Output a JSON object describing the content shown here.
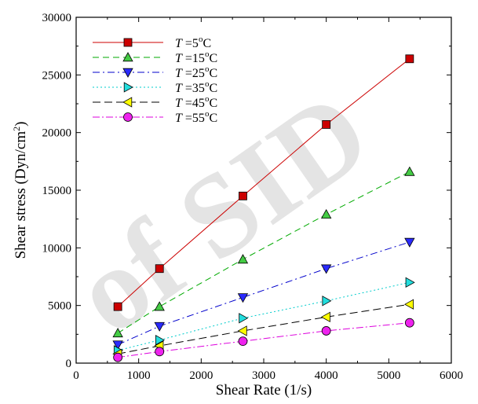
{
  "chart_data": {
    "type": "line",
    "xlabel": "Shear Rate (1/s)",
    "ylabel_main": "Shear stress (Dyn/cm",
    "ylabel_sup": "2",
    "ylabel_end": ")",
    "xlim": [
      0,
      6000
    ],
    "ylim": [
      0,
      30000
    ],
    "xticks": [
      0,
      1000,
      2000,
      3000,
      4000,
      5000,
      6000
    ],
    "yticks": [
      0,
      5000,
      10000,
      15000,
      20000,
      25000,
      30000
    ],
    "x": [
      667,
      1333,
      2667,
      4000,
      5333
    ],
    "legend_position": "top-left",
    "grid": false,
    "series": [
      {
        "name": "T =5°C",
        "temp": "5",
        "values": [
          4900,
          8200,
          14500,
          20700,
          26400
        ],
        "color": "#cc0000",
        "marker": "square",
        "fill": "#cc0000",
        "dash": ""
      },
      {
        "name": "T =15°C",
        "temp": "15",
        "values": [
          2600,
          4900,
          9000,
          12900,
          16600
        ],
        "color": "#00aa00",
        "marker": "triangle-up",
        "fill": "#44cc44",
        "dash": "8,5"
      },
      {
        "name": "T =25°C",
        "temp": "25",
        "values": [
          1600,
          3200,
          5700,
          8200,
          10500
        ],
        "color": "#0000cc",
        "marker": "triangle-down",
        "fill": "#2a2aff",
        "dash": "9,4,2,4"
      },
      {
        "name": "T =35°C",
        "temp": "35",
        "values": [
          1100,
          2000,
          3900,
          5400,
          7000
        ],
        "color": "#00cccc",
        "marker": "triangle-right",
        "fill": "#22dddd",
        "dash": "2,3"
      },
      {
        "name": "T =45°C",
        "temp": "45",
        "values": [
          800,
          1500,
          2800,
          4000,
          5100
        ],
        "color": "#000000",
        "marker": "triangle-left",
        "fill": "#ffff00",
        "dash": "10,5"
      },
      {
        "name": "T =55°C",
        "temp": "55",
        "values": [
          500,
          1000,
          1900,
          2800,
          3500
        ],
        "color": "#dd00dd",
        "marker": "circle",
        "fill": "#ee22ee",
        "dash": "9,3,2,3"
      }
    ]
  },
  "watermark": {
    "text": "of SID"
  }
}
